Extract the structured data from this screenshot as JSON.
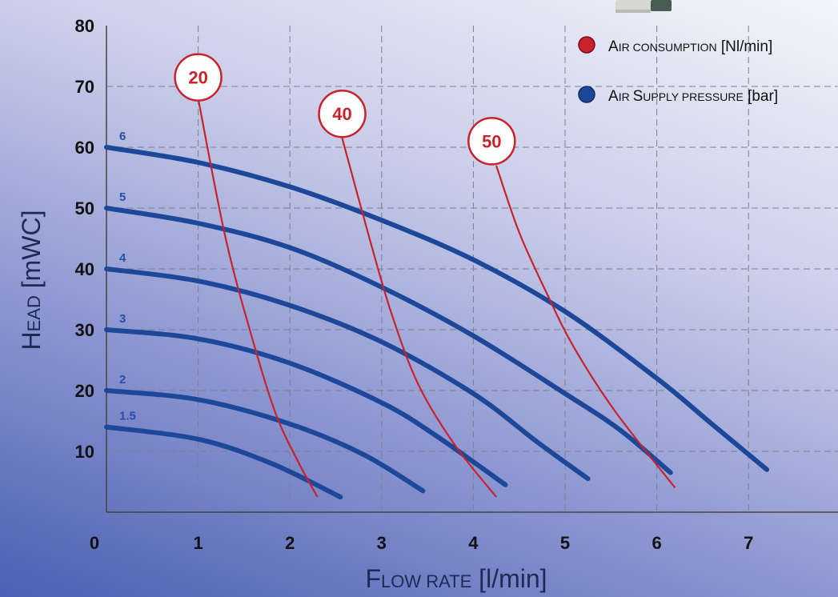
{
  "chart_data": {
    "type": "line",
    "xlabel": {
      "cap": "F",
      "rest": "LOW RATE",
      "unit": " [l/min]"
    },
    "ylabel": {
      "cap": "H",
      "rest": "EAD",
      "unit": " [mWC]"
    },
    "xlim": [
      0,
      8
    ],
    "ylim": [
      0,
      80
    ],
    "x_ticks": [
      "0",
      "1",
      "2",
      "3",
      "4",
      "5",
      "6",
      "7"
    ],
    "y_ticks": [
      "10",
      "20",
      "30",
      "40",
      "50",
      "60",
      "70",
      "80"
    ],
    "grid": true,
    "legend_position": "top-right",
    "legend": [
      {
        "cap1": "A",
        "rest1": "IR CONSUMPTION",
        "cap2": "",
        "rest2": "",
        "unit": " [Nl/min]",
        "color": "#c8232c"
      },
      {
        "cap1": "A",
        "rest1": "IR ",
        "cap2": "S",
        "rest2": "UPPLY PRESSURE",
        "unit": " [bar]",
        "color": "#1d4799"
      }
    ],
    "pressure_series": [
      {
        "name": "6",
        "color": "#1d4799",
        "points": [
          [
            0.0,
            60.0
          ],
          [
            1.0,
            57.5
          ],
          [
            2.0,
            53.5
          ],
          [
            3.0,
            48.0
          ],
          [
            4.0,
            41.5
          ],
          [
            5.0,
            33.0
          ],
          [
            6.0,
            22.0
          ],
          [
            6.6,
            14.5
          ],
          [
            7.2,
            7.0
          ]
        ]
      },
      {
        "name": "5",
        "color": "#1d4799",
        "points": [
          [
            0.0,
            50.0
          ],
          [
            1.0,
            47.5
          ],
          [
            2.0,
            43.5
          ],
          [
            3.0,
            37.0
          ],
          [
            4.0,
            29.0
          ],
          [
            5.0,
            19.5
          ],
          [
            5.6,
            13.5
          ],
          [
            6.15,
            6.5
          ]
        ]
      },
      {
        "name": "4",
        "color": "#1d4799",
        "points": [
          [
            0.0,
            40.0
          ],
          [
            1.0,
            38.0
          ],
          [
            2.0,
            34.0
          ],
          [
            3.0,
            28.0
          ],
          [
            4.0,
            19.5
          ],
          [
            4.7,
            11.5
          ],
          [
            5.25,
            5.5
          ]
        ]
      },
      {
        "name": "3",
        "color": "#1d4799",
        "points": [
          [
            0.0,
            30.0
          ],
          [
            1.0,
            28.5
          ],
          [
            2.0,
            24.5
          ],
          [
            3.0,
            18.0
          ],
          [
            3.6,
            12.5
          ],
          [
            4.35,
            4.5
          ]
        ]
      },
      {
        "name": "2",
        "color": "#1d4799",
        "points": [
          [
            0.0,
            20.0
          ],
          [
            1.0,
            18.5
          ],
          [
            2.0,
            14.5
          ],
          [
            2.8,
            9.5
          ],
          [
            3.45,
            3.5
          ]
        ]
      },
      {
        "name": "1.5",
        "color": "#1d4799",
        "points": [
          [
            0.0,
            14.0
          ],
          [
            1.0,
            12.0
          ],
          [
            1.8,
            8.0
          ],
          [
            2.55,
            2.5
          ]
        ]
      }
    ],
    "consumption_series": [
      {
        "name": "20",
        "color": "#c8232c",
        "label_at": [
          1.0,
          71.5
        ],
        "points": [
          [
            1.0,
            68.0
          ],
          [
            1.3,
            45.0
          ],
          [
            1.6,
            28.0
          ],
          [
            1.85,
            16.0
          ],
          [
            2.1,
            8.0
          ],
          [
            2.3,
            2.5
          ]
        ]
      },
      {
        "name": "40",
        "color": "#c8232c",
        "label_at": [
          2.57,
          65.5
        ],
        "points": [
          [
            2.57,
            61.5
          ],
          [
            2.85,
            46.0
          ],
          [
            3.1,
            33.0
          ],
          [
            3.4,
            21.0
          ],
          [
            3.8,
            11.0
          ],
          [
            4.25,
            2.5
          ]
        ]
      },
      {
        "name": "50",
        "color": "#c8232c",
        "label_at": [
          4.2,
          61.0
        ],
        "points": [
          [
            4.25,
            57.0
          ],
          [
            4.5,
            46.0
          ],
          [
            4.8,
            36.0
          ],
          [
            5.1,
            27.0
          ],
          [
            5.55,
            16.5
          ],
          [
            6.2,
            4.0
          ]
        ]
      }
    ]
  }
}
